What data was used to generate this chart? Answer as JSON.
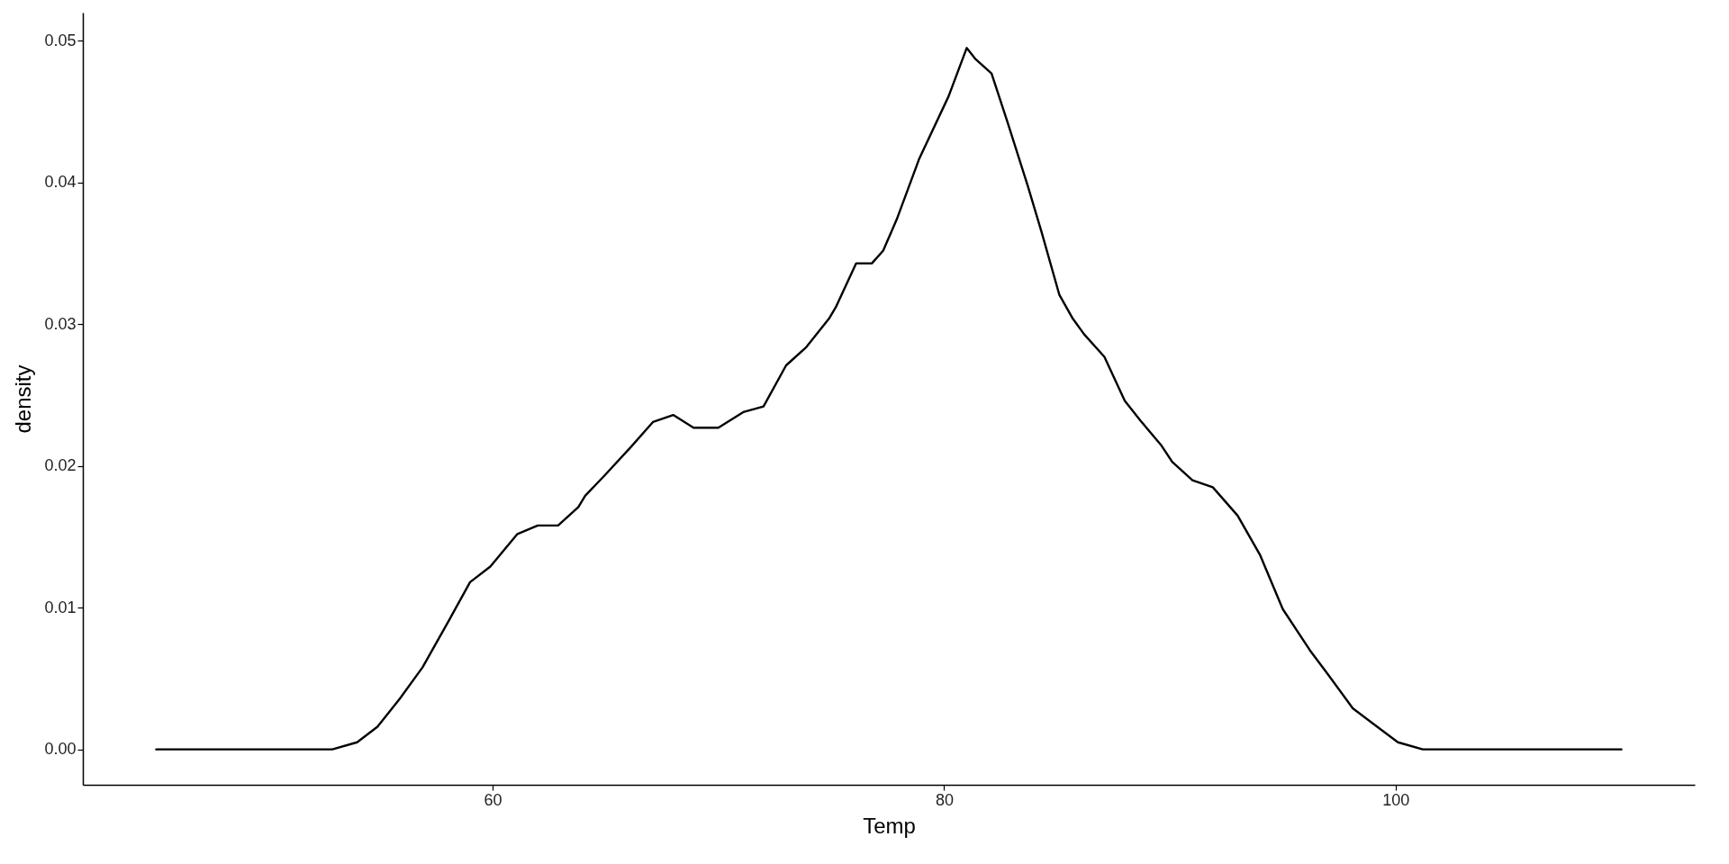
{
  "chart_data": {
    "type": "line",
    "xlabel": "Temp",
    "ylabel": "density",
    "x": [
      45.1,
      52.9,
      54.0,
      54.9,
      55.9,
      56.9,
      58.1,
      59.0,
      59.9,
      61.1,
      62.0,
      62.9,
      63.8,
      64.1,
      65.0,
      66.1,
      67.1,
      68.0,
      68.9,
      69.4,
      70.0,
      71.1,
      72.0,
      73.0,
      73.9,
      74.9,
      75.2,
      76.1,
      76.8,
      77.3,
      77.9,
      78.9,
      80.2,
      81.0,
      81.4,
      82.1,
      82.8,
      83.7,
      84.3,
      85.1,
      85.7,
      86.2,
      87.1,
      88.0,
      88.7,
      89.6,
      90.1,
      91.0,
      91.9,
      93.0,
      94.0,
      95.0,
      96.2,
      97.0,
      98.1,
      100.1,
      101.2,
      110.0
    ],
    "series": [
      {
        "color": "#000000",
        "values": [
          0,
          0,
          0.0005,
          0.0016,
          0.0036,
          0.0058,
          0.0092,
          0.0118,
          0.0129,
          0.0152,
          0.0158,
          0.0158,
          0.0171,
          0.0179,
          0.0194,
          0.0213,
          0.0231,
          0.0236,
          0.0227,
          0.0227,
          0.0227,
          0.0238,
          0.0242,
          0.0271,
          0.0284,
          0.0304,
          0.0312,
          0.0343,
          0.0343,
          0.0352,
          0.0374,
          0.0417,
          0.0461,
          0.0495,
          0.0487,
          0.0477,
          0.0443,
          0.0398,
          0.0366,
          0.0321,
          0.0304,
          0.0293,
          0.0277,
          0.0246,
          0.0232,
          0.0215,
          0.0203,
          0.019,
          0.0185,
          0.0165,
          0.0137,
          0.0099,
          0.007,
          0.0053,
          0.0029,
          0.0005,
          0,
          0
        ]
      }
    ],
    "xlim": [
      41.85,
      113.25
    ],
    "xticks": [
      60,
      80,
      100
    ],
    "ylim": [
      -0.0025,
      0.052
    ],
    "yticks": [
      {
        "value": 0,
        "label": "0.00"
      },
      {
        "value": 0.01,
        "label": "0.01"
      },
      {
        "value": 0.02,
        "label": "0.02"
      },
      {
        "value": 0.03,
        "label": "0.03"
      },
      {
        "value": 0.04,
        "label": "0.04"
      },
      {
        "value": 0.05,
        "label": "0.05"
      }
    ],
    "marker": "none",
    "line_style": "solid"
  }
}
